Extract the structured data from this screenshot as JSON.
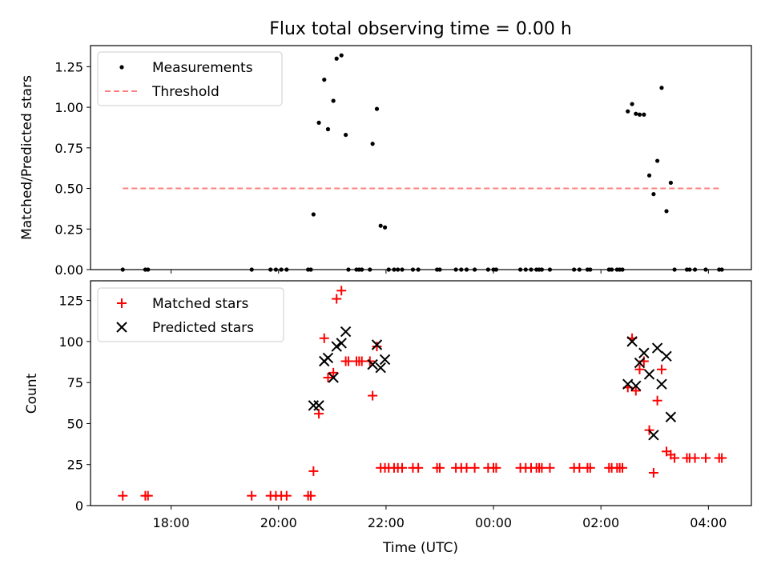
{
  "chart_data": [
    {
      "type": "scatter",
      "title": "Flux total observing time = 0.00 h",
      "xlabel": "",
      "ylabel": "Matched/Predicted stars",
      "x_unit": "hours since 00:00 UTC (negative = previous day)",
      "xlim": [
        -7.5,
        4.8
      ],
      "ylim": [
        0,
        1.38
      ],
      "yticks": [
        0.0,
        0.25,
        0.5,
        0.75,
        1.0,
        1.25
      ],
      "ytick_labels": [
        "0.00",
        "0.25",
        "0.50",
        "0.75",
        "1.00",
        "1.25"
      ],
      "legend_position": "upper-left",
      "series": [
        {
          "name": "Measurements",
          "marker": "dot",
          "color": "#000000",
          "points": [
            [
              -6.9,
              0.0
            ],
            [
              -6.48,
              0.0
            ],
            [
              -6.43,
              0.0
            ],
            [
              -4.5,
              0.0
            ],
            [
              -4.15,
              0.0
            ],
            [
              -4.05,
              0.0
            ],
            [
              -3.95,
              0.0
            ],
            [
              -3.85,
              0.0
            ],
            [
              -3.45,
              0.0
            ],
            [
              -3.4,
              0.0
            ],
            [
              -3.35,
              0.34
            ],
            [
              -3.25,
              0.905
            ],
            [
              -3.15,
              1.17
            ],
            [
              -3.08,
              0.865
            ],
            [
              -2.98,
              1.04
            ],
            [
              -2.92,
              1.3
            ],
            [
              -2.83,
              1.32
            ],
            [
              -2.75,
              0.83
            ],
            [
              -2.7,
              0.0
            ],
            [
              -2.55,
              0.0
            ],
            [
              -2.5,
              0.0
            ],
            [
              -2.45,
              0.0
            ],
            [
              -2.3,
              0.0
            ],
            [
              -2.25,
              0.775
            ],
            [
              -2.17,
              0.99
            ],
            [
              -2.1,
              0.27
            ],
            [
              -2.02,
              0.26
            ],
            [
              -1.95,
              0.0
            ],
            [
              -1.85,
              0.0
            ],
            [
              -1.78,
              0.0
            ],
            [
              -1.7,
              0.0
            ],
            [
              -1.5,
              0.0
            ],
            [
              -1.4,
              0.0
            ],
            [
              -1.05,
              0.0
            ],
            [
              -1.0,
              0.0
            ],
            [
              -0.7,
              0.0
            ],
            [
              -0.6,
              0.0
            ],
            [
              -0.5,
              0.0
            ],
            [
              -0.35,
              0.0
            ],
            [
              -0.1,
              0.0
            ],
            [
              0.0,
              0.0
            ],
            [
              0.05,
              0.0
            ],
            [
              0.5,
              0.0
            ],
            [
              0.6,
              0.0
            ],
            [
              0.7,
              0.0
            ],
            [
              0.8,
              0.0
            ],
            [
              0.85,
              0.0
            ],
            [
              0.9,
              0.0
            ],
            [
              1.05,
              0.0
            ],
            [
              1.5,
              0.0
            ],
            [
              1.6,
              0.0
            ],
            [
              1.75,
              0.0
            ],
            [
              1.8,
              0.0
            ],
            [
              2.15,
              0.0
            ],
            [
              2.2,
              0.0
            ],
            [
              2.3,
              0.0
            ],
            [
              2.35,
              0.0
            ],
            [
              2.4,
              0.0
            ],
            [
              2.5,
              0.975
            ],
            [
              2.58,
              1.02
            ],
            [
              2.65,
              0.96
            ],
            [
              2.72,
              0.955
            ],
            [
              2.8,
              0.955
            ],
            [
              2.9,
              0.58
            ],
            [
              2.98,
              0.465
            ],
            [
              3.05,
              0.67
            ],
            [
              3.13,
              1.12
            ],
            [
              3.22,
              0.36
            ],
            [
              3.3,
              0.535
            ],
            [
              3.37,
              0.0
            ],
            [
              3.6,
              0.0
            ],
            [
              3.65,
              0.0
            ],
            [
              3.75,
              0.0
            ],
            [
              3.95,
              0.0
            ],
            [
              4.2,
              0.0
            ],
            [
              4.25,
              0.0
            ]
          ]
        },
        {
          "name": "Threshold",
          "marker": "dashed-line",
          "color": "#ff8080",
          "x": [
            -6.9,
            4.25
          ],
          "y": [
            0.5,
            0.5
          ]
        }
      ]
    },
    {
      "type": "scatter",
      "title": "",
      "xlabel": "Time (UTC)",
      "ylabel": "Count",
      "x_unit": "hours since 00:00 UTC (negative = previous day)",
      "xlim": [
        -7.5,
        4.8
      ],
      "ylim": [
        0,
        137
      ],
      "yticks": [
        0,
        25,
        50,
        75,
        100,
        125
      ],
      "ytick_labels": [
        "0",
        "25",
        "50",
        "75",
        "100",
        "125"
      ],
      "xticks": [
        -6,
        -4,
        -2,
        0,
        2,
        4
      ],
      "xtick_labels": [
        "18:00",
        "20:00",
        "22:00",
        "00:00",
        "02:00",
        "04:00"
      ],
      "legend_position": "upper-left",
      "series": [
        {
          "name": "Matched stars",
          "marker": "plus",
          "color": "#ff0000",
          "points": [
            [
              -6.9,
              6
            ],
            [
              -6.48,
              6
            ],
            [
              -6.43,
              6
            ],
            [
              -4.5,
              6
            ],
            [
              -4.15,
              6
            ],
            [
              -4.05,
              6
            ],
            [
              -3.95,
              6
            ],
            [
              -3.85,
              6
            ],
            [
              -3.45,
              6
            ],
            [
              -3.4,
              6
            ],
            [
              -3.35,
              21
            ],
            [
              -3.25,
              56
            ],
            [
              -3.15,
              102
            ],
            [
              -3.08,
              78
            ],
            [
              -2.98,
              81
            ],
            [
              -2.92,
              126
            ],
            [
              -2.83,
              131
            ],
            [
              -2.75,
              88
            ],
            [
              -2.7,
              88
            ],
            [
              -2.55,
              88
            ],
            [
              -2.5,
              88
            ],
            [
              -2.45,
              88
            ],
            [
              -2.3,
              88
            ],
            [
              -2.25,
              67
            ],
            [
              -2.17,
              97
            ],
            [
              -2.1,
              23
            ],
            [
              -2.02,
              23
            ],
            [
              -1.95,
              23
            ],
            [
              -1.85,
              23
            ],
            [
              -1.78,
              23
            ],
            [
              -1.7,
              23
            ],
            [
              -1.5,
              23
            ],
            [
              -1.4,
              23
            ],
            [
              -1.05,
              23
            ],
            [
              -1.0,
              23
            ],
            [
              -0.7,
              23
            ],
            [
              -0.6,
              23
            ],
            [
              -0.5,
              23
            ],
            [
              -0.35,
              23
            ],
            [
              -0.1,
              23
            ],
            [
              0.0,
              23
            ],
            [
              0.05,
              23
            ],
            [
              0.5,
              23
            ],
            [
              0.6,
              23
            ],
            [
              0.7,
              23
            ],
            [
              0.8,
              23
            ],
            [
              0.85,
              23
            ],
            [
              0.9,
              23
            ],
            [
              1.05,
              23
            ],
            [
              1.5,
              23
            ],
            [
              1.6,
              23
            ],
            [
              1.75,
              23
            ],
            [
              1.8,
              23
            ],
            [
              2.15,
              23
            ],
            [
              2.2,
              23
            ],
            [
              2.3,
              23
            ],
            [
              2.35,
              23
            ],
            [
              2.4,
              23
            ],
            [
              2.5,
              72
            ],
            [
              2.58,
              102
            ],
            [
              2.65,
              70
            ],
            [
              2.72,
              83
            ],
            [
              2.8,
              88
            ],
            [
              2.9,
              46
            ],
            [
              2.98,
              20
            ],
            [
              3.05,
              64
            ],
            [
              3.13,
              83
            ],
            [
              3.22,
              33
            ],
            [
              3.3,
              31
            ],
            [
              3.37,
              29
            ],
            [
              3.6,
              29
            ],
            [
              3.65,
              29
            ],
            [
              3.75,
              29
            ],
            [
              3.95,
              29
            ],
            [
              4.2,
              29
            ],
            [
              4.25,
              29
            ]
          ]
        },
        {
          "name": "Predicted stars",
          "marker": "x",
          "color": "#000000",
          "points": [
            [
              -3.35,
              61
            ],
            [
              -3.25,
              61
            ],
            [
              -3.15,
              88
            ],
            [
              -3.08,
              90
            ],
            [
              -2.98,
              78
            ],
            [
              -2.92,
              97
            ],
            [
              -2.83,
              99
            ],
            [
              -2.75,
              106
            ],
            [
              -2.25,
              86
            ],
            [
              -2.17,
              98
            ],
            [
              -2.1,
              84
            ],
            [
              -2.02,
              89
            ],
            [
              2.5,
              74
            ],
            [
              2.58,
              100
            ],
            [
              2.65,
              73
            ],
            [
              2.72,
              87
            ],
            [
              2.8,
              93
            ],
            [
              2.9,
              80
            ],
            [
              2.98,
              43
            ],
            [
              3.05,
              96
            ],
            [
              3.13,
              74
            ],
            [
              3.22,
              91
            ],
            [
              3.3,
              54
            ]
          ]
        }
      ]
    }
  ]
}
